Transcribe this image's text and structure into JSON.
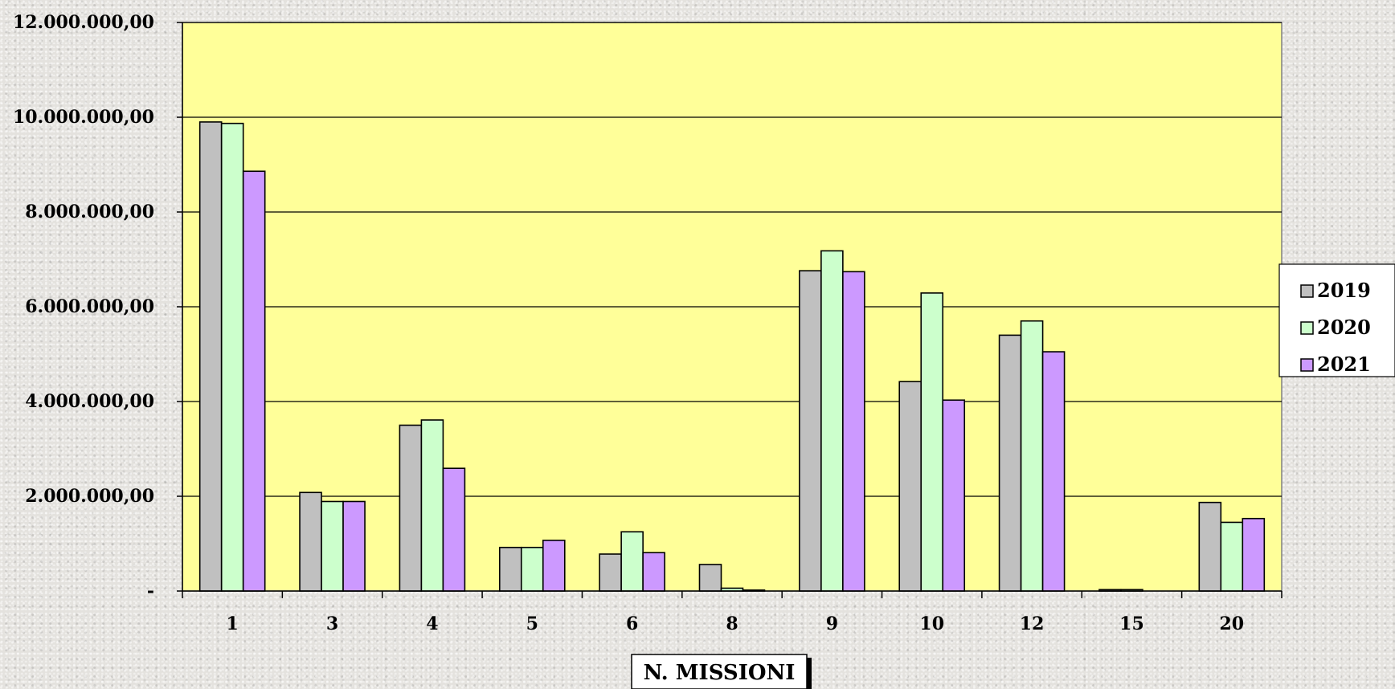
{
  "chart_data": {
    "type": "bar",
    "xlabel": "N. MISSIONI",
    "ylabel": "",
    "ylim": [
      0,
      12000000
    ],
    "y_ticks": [
      {
        "value": 0,
        "label": "-"
      },
      {
        "value": 2000000,
        "label": "2.000.000,00"
      },
      {
        "value": 4000000,
        "label": "4.000.000,00"
      },
      {
        "value": 6000000,
        "label": "6.000.000,00"
      },
      {
        "value": 8000000,
        "label": "8.000.000,00"
      },
      {
        "value": 10000000,
        "label": "10.000.000,00"
      },
      {
        "value": 12000000,
        "label": "12.000.000,00"
      }
    ],
    "categories": [
      "1",
      "3",
      "4",
      "5",
      "6",
      "8",
      "9",
      "10",
      "12",
      "15",
      "20"
    ],
    "series": [
      {
        "name": "2019",
        "color": "#c0c0c0",
        "values": [
          9900000,
          2080000,
          3500000,
          920000,
          780000,
          560000,
          6760000,
          4420000,
          5400000,
          30000,
          1870000
        ]
      },
      {
        "name": "2020",
        "color": "#ccffcc",
        "values": [
          9870000,
          1890000,
          3610000,
          920000,
          1250000,
          60000,
          7180000,
          6290000,
          5700000,
          30000,
          1450000
        ]
      },
      {
        "name": "2021",
        "color": "#cc99ff",
        "values": [
          8860000,
          1890000,
          2590000,
          1070000,
          810000,
          20000,
          6740000,
          4030000,
          5050000,
          0,
          1530000
        ]
      }
    ],
    "grid": true,
    "legend_position": "right",
    "plot_background": "#ffff99"
  }
}
